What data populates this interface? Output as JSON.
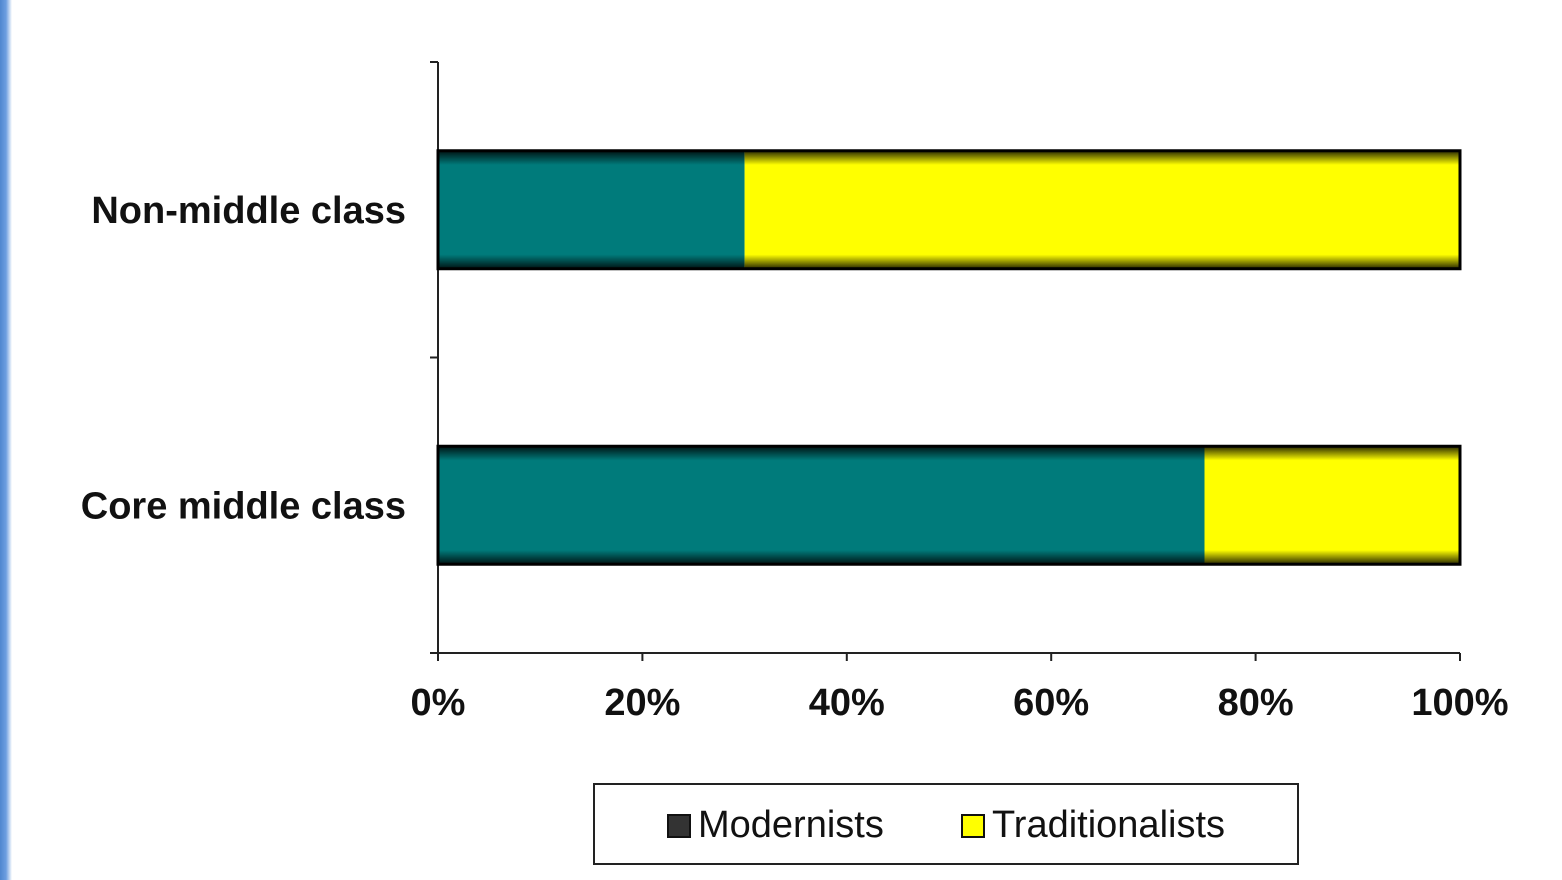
{
  "chart_data": {
    "type": "bar",
    "orientation": "horizontal",
    "stacked": true,
    "categories": [
      "Non-middle class",
      "Core middle class"
    ],
    "series": [
      {
        "name": "Modernists",
        "values": [
          30,
          75
        ],
        "color": "#007b7b"
      },
      {
        "name": "Traditionalists",
        "values": [
          70,
          25
        ],
        "color": "#ffff00"
      }
    ],
    "x_ticks": [
      "0%",
      "20%",
      "40%",
      "60%",
      "80%",
      "100%"
    ],
    "xlim": [
      0,
      100
    ],
    "grid": false,
    "legend": {
      "placement": "bottom",
      "items": [
        "Modernists",
        "Traditionalists"
      ]
    }
  }
}
